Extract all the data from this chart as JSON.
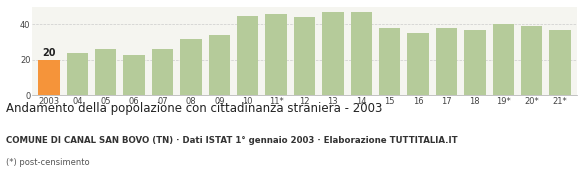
{
  "categories": [
    "2003",
    "04",
    "05",
    "06",
    "07",
    "08",
    "09",
    "10",
    "11*",
    "12",
    "13",
    "14",
    "15",
    "16",
    "17",
    "18",
    "19*",
    "20*",
    "21*"
  ],
  "values": [
    20,
    24,
    26,
    23,
    26,
    32,
    34,
    45,
    46,
    44,
    47,
    47,
    38,
    35,
    38,
    37,
    40,
    39,
    37
  ],
  "bar_colors": [
    "#f5943a",
    "#b5cb9a",
    "#b5cb9a",
    "#b5cb9a",
    "#b5cb9a",
    "#b5cb9a",
    "#b5cb9a",
    "#b5cb9a",
    "#b5cb9a",
    "#b5cb9a",
    "#b5cb9a",
    "#b5cb9a",
    "#b5cb9a",
    "#b5cb9a",
    "#b5cb9a",
    "#b5cb9a",
    "#b5cb9a",
    "#b5cb9a",
    "#b5cb9a"
  ],
  "highlight_label": "20",
  "highlight_index": 0,
  "ylim": [
    0,
    50
  ],
  "yticks": [
    0,
    20,
    40
  ],
  "title": "Andamento della popolazione con cittadinanza straniera - 2003",
  "subtitle": "COMUNE DI CANAL SAN BOVO (TN) · Dati ISTAT 1° gennaio 2003 · Elaborazione TUTTITALIA.IT",
  "footnote": "(*) post-censimento",
  "grid_color": "#cccccc",
  "bg_color": "#f5f5f0",
  "title_fontsize": 8.5,
  "subtitle_fontsize": 6.2,
  "footnote_fontsize": 6.0,
  "tick_fontsize": 6.0
}
